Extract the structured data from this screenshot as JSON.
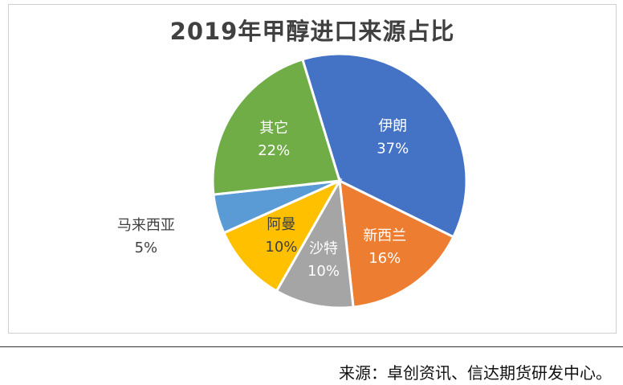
{
  "chart_data": {
    "type": "pie",
    "title": "2019年甲醇进口来源占比",
    "slices": [
      {
        "label": "伊朗",
        "value": 37,
        "display": "37%",
        "color": "#4472C4"
      },
      {
        "label": "新西兰",
        "value": 16,
        "display": "16%",
        "color": "#ED7D31"
      },
      {
        "label": "沙特",
        "value": 10,
        "display": "10%",
        "color": "#A5A5A5"
      },
      {
        "label": "阿曼",
        "value": 10,
        "display": "10%",
        "color": "#FFC000"
      },
      {
        "label": "马来西亚",
        "value": 5,
        "display": "5%",
        "color": "#5B9BD5"
      },
      {
        "label": "其它",
        "value": 22,
        "display": "22%",
        "color": "#70AD47"
      }
    ]
  },
  "footer": {
    "source": "来源：卓创资讯、信达期货研发中心。"
  }
}
